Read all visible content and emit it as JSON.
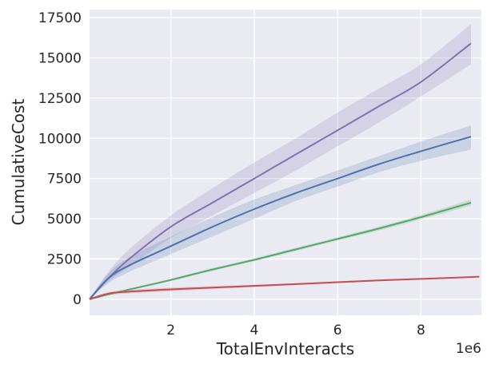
{
  "chart_data": {
    "type": "line",
    "xlabel": "TotalEnvInteracts",
    "ylabel": "CumulativeCost",
    "x_offset_text": "1e6",
    "xlim": [
      50000.0,
      9450000.0
    ],
    "ylim": [
      -1000,
      18000
    ],
    "x_ticks": [
      2000000,
      4000000,
      6000000,
      8000000
    ],
    "x_tick_labels": [
      "2",
      "4",
      "6",
      "8"
    ],
    "y_ticks": [
      0,
      2500,
      5000,
      7500,
      10000,
      12500,
      15000,
      17500
    ],
    "y_tick_labels": [
      "0",
      "2500",
      "5000",
      "7500",
      "10000",
      "12500",
      "15000",
      "17500"
    ],
    "grid": true,
    "background": "#EAEAF2",
    "series": [
      {
        "color": "#8172B3",
        "x": [
          50000,
          500000,
          1000000,
          2000000,
          3000000,
          4000000,
          5000000,
          6000000,
          7000000,
          8000000,
          9200000
        ],
        "values": [
          0,
          1300,
          2500,
          4500,
          6000,
          7500,
          9000,
          10500,
          12000,
          13500,
          15900
        ],
        "lower": [
          0,
          1100,
          2000,
          3800,
          5200,
          6600,
          8000,
          9500,
          11000,
          12600,
          14600
        ],
        "upper": [
          0,
          1700,
          3100,
          5200,
          6900,
          8500,
          10000,
          11600,
          13100,
          14600,
          17100
        ]
      },
      {
        "color": "#4C72B0",
        "x": [
          50000,
          500000,
          1000000,
          2000000,
          3000000,
          4000000,
          5000000,
          6000000,
          7000000,
          8000000,
          9200000
        ],
        "values": [
          0,
          1300,
          2100,
          3300,
          4500,
          5600,
          6600,
          7500,
          8400,
          9200,
          10100
        ],
        "lower": [
          0,
          1000,
          1700,
          2800,
          3900,
          5000,
          6100,
          7000,
          7900,
          8600,
          9300
        ],
        "upper": [
          0,
          1600,
          2600,
          3900,
          5100,
          6200,
          7100,
          8000,
          8900,
          9800,
          10800
        ]
      },
      {
        "color": "#55A868",
        "x": [
          50000,
          500000,
          1000000,
          2000000,
          3000000,
          4000000,
          5000000,
          6000000,
          7000000,
          8000000,
          9200000
        ],
        "values": [
          0,
          300,
          600,
          1200,
          1850,
          2450,
          3100,
          3750,
          4400,
          5100,
          6000
        ],
        "lower": [
          0,
          250,
          540,
          1130,
          1760,
          2360,
          3000,
          3650,
          4280,
          4960,
          5800
        ],
        "upper": [
          0,
          350,
          660,
          1270,
          1940,
          2540,
          3200,
          3850,
          4520,
          5240,
          6200
        ]
      },
      {
        "color": "#C44E52",
        "x": [
          50000,
          500000,
          1000000,
          2000000,
          3000000,
          4000000,
          5000000,
          6000000,
          7000000,
          8000000,
          9400000
        ],
        "values": [
          0,
          350,
          470,
          610,
          720,
          830,
          940,
          1060,
          1170,
          1260,
          1400
        ],
        "lower": [
          0,
          250,
          360,
          500,
          630,
          760,
          880,
          1000,
          1120,
          1220,
          1370
        ],
        "upper": [
          0,
          450,
          580,
          720,
          810,
          900,
          1000,
          1110,
          1220,
          1300,
          1430
        ]
      }
    ]
  }
}
